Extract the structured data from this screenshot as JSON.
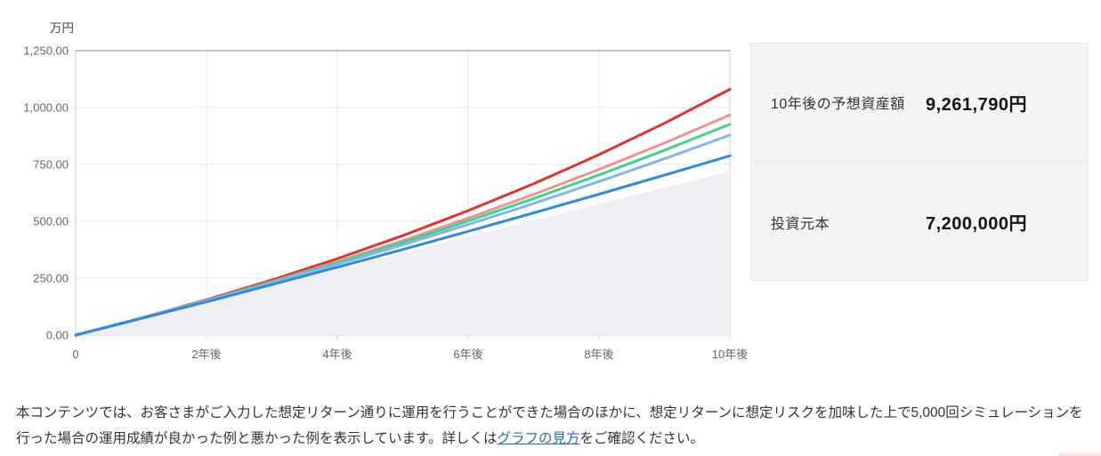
{
  "chart_data": {
    "type": "line",
    "unit_label": "万円",
    "x": [
      0,
      1,
      2,
      3,
      4,
      5,
      6,
      7,
      8,
      9,
      10
    ],
    "x_max": 10,
    "x_ticks": [
      {
        "year": 0,
        "label": "0"
      },
      {
        "year": 2,
        "label": "2年後"
      },
      {
        "year": 4,
        "label": "4年後"
      },
      {
        "year": 6,
        "label": "6年後"
      },
      {
        "year": 8,
        "label": "8年後"
      },
      {
        "year": 10,
        "label": "10年後"
      }
    ],
    "ylim": [
      0,
      1250
    ],
    "y_ticks": [
      {
        "value": 0,
        "label": "0.00"
      },
      {
        "value": 250,
        "label": "250.00"
      },
      {
        "value": 500,
        "label": "500.00"
      },
      {
        "value": 750,
        "label": "750.00"
      },
      {
        "value": 1000,
        "label": "1,000.00"
      },
      {
        "value": 1250,
        "label": "1,250.00"
      }
    ],
    "grid": true,
    "legend": "none",
    "series": [
      {
        "id": "principal-area",
        "kind": "area",
        "color": "#edeff4",
        "values": [
          0,
          72,
          144,
          216,
          288,
          360,
          432,
          504,
          576,
          648,
          720
        ]
      },
      {
        "id": "best-case-line",
        "kind": "line",
        "color": "#d7372e",
        "values": [
          0,
          75,
          155,
          242,
          336,
          437,
          547,
          665,
          793,
          931,
          1080
        ]
      },
      {
        "id": "good-case-line",
        "kind": "line",
        "color": "#f0928d",
        "values": [
          0,
          74,
          152,
          235,
          323,
          415,
          514,
          618,
          728,
          844,
          967
        ]
      },
      {
        "id": "expected-return-line",
        "kind": "line",
        "color": "#43d08c",
        "values": [
          0,
          74,
          151,
          232,
          317,
          407,
          501,
          600,
          704,
          812,
          926
        ]
      },
      {
        "id": "mild-case-line",
        "kind": "line",
        "color": "#7eb7e8",
        "values": [
          0,
          73,
          150,
          229,
          311,
          397,
          486,
          578,
          675,
          775,
          879
        ]
      },
      {
        "id": "worst-case-line",
        "kind": "line",
        "color": "#338ad8",
        "values": [
          0,
          73,
          146,
          222,
          298,
          376,
          456,
          537,
          619,
          703,
          788
        ]
      }
    ],
    "colors": {
      "grid": "#e9e9e9",
      "frame": "#cfcfcf",
      "frame_top": "#c2c2c2",
      "tick_text": "#666666",
      "unit_text": "#444444"
    }
  },
  "summary": {
    "items": [
      {
        "label": "10年後の予想資産額",
        "value": "9,261,790円"
      },
      {
        "label": "投資元本",
        "value": "7,200,000円"
      }
    ]
  },
  "note": {
    "text_before": "本コンテンツでは、お客さまがご入力した想定リターン通りに運用を行うことができた場合のほかに、想定リターンに想定リスクを加味した上で5,000回シミュレーションを行った場合の運用成績が良かった例と悪かった例を表示しています。詳しくは",
    "link_text": "グラフの見方",
    "text_after": "をご確認ください。"
  }
}
